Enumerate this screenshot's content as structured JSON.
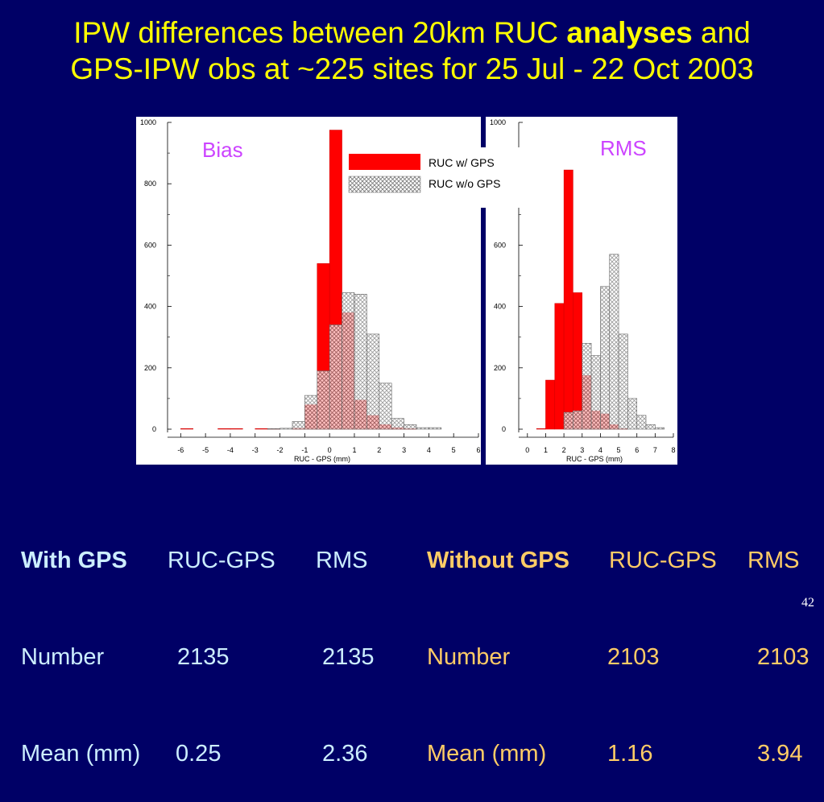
{
  "slide": {
    "title_line1_pre": "IPW differences between 20km RUC ",
    "title_line1_bold": "analyses",
    "title_line1_post": " and",
    "title_line2": "GPS-IPW obs at ~225 sites for 25 Jul - 22 Oct 2003",
    "page_number": "42"
  },
  "legend": {
    "with_gps": "RUC w/ GPS",
    "without_gps": "RUC w/o GPS"
  },
  "colors": {
    "background": "#000066",
    "with_gps": "#ff0000",
    "without_gps_hatch": "#999999",
    "title": "#ffff00",
    "panel_label": "#cc44ff"
  },
  "chart_data": [
    {
      "type": "bar",
      "panel_label": "Bias",
      "xlabel": "RUC - GPS (mm)",
      "xlim": [
        -6.4,
        6
      ],
      "ylim": [
        0,
        1000
      ],
      "yticks": [
        "0",
        "200",
        "400",
        "600",
        "800",
        "1000"
      ],
      "xticks": [
        "-6",
        "-5",
        "-4",
        "-3",
        "-2",
        "-1",
        "0",
        "1",
        "2",
        "3",
        "4",
        "5",
        "6"
      ],
      "bin_width": 0.5,
      "series": [
        {
          "name": "RUC w/ GPS",
          "bins": [
            -6.0,
            -4.5,
            -4.0,
            -3.0,
            -2.5,
            -1.5,
            -1.0,
            -0.5,
            0.0,
            0.5,
            1.0,
            1.5,
            2.0,
            2.5,
            3.0
          ],
          "values": [
            2,
            2,
            2,
            2,
            2,
            3,
            80,
            540,
            975,
            380,
            95,
            45,
            15,
            5,
            2
          ]
        },
        {
          "name": "RUC w/o GPS",
          "bins": [
            -2.5,
            -2.0,
            -1.5,
            -1.0,
            -0.5,
            0.0,
            0.5,
            1.0,
            1.5,
            2.0,
            2.5,
            3.0,
            3.5,
            4.0
          ],
          "values": [
            2,
            3,
            25,
            110,
            190,
            340,
            445,
            440,
            310,
            150,
            35,
            15,
            5,
            5
          ]
        }
      ]
    },
    {
      "type": "bar",
      "panel_label": "RMS",
      "xlabel": "RUC - GPS (mm)",
      "xlim": [
        -0.3,
        8
      ],
      "ylim": [
        0,
        1000
      ],
      "yticks": [
        "0",
        "200",
        "400",
        "600",
        "1000"
      ],
      "xticks": [
        "0",
        "1",
        "2",
        "3",
        "4",
        "5",
        "6",
        "7",
        "8"
      ],
      "bin_width": 0.5,
      "series": [
        {
          "name": "RUC w/ GPS",
          "bins": [
            0.5,
            1.0,
            1.5,
            2.0,
            2.5,
            3.0,
            3.5,
            4.0,
            4.5,
            5.0
          ],
          "values": [
            2,
            160,
            410,
            845,
            445,
            175,
            60,
            50,
            15,
            2
          ]
        },
        {
          "name": "RUC w/o GPS",
          "bins": [
            2.0,
            2.5,
            3.0,
            3.5,
            4.0,
            4.5,
            5.0,
            5.5,
            6.0,
            6.5,
            7.0
          ],
          "values": [
            55,
            60,
            280,
            240,
            465,
            570,
            310,
            100,
            45,
            15,
            5
          ]
        }
      ]
    }
  ],
  "stats": {
    "with": {
      "head": "With GPS",
      "col1": "RUC-GPS",
      "col2": "RMS",
      "row1_label": "Number",
      "row1_v1": "2135",
      "row1_v2": "2135",
      "row2_label": "Mean (mm)",
      "row2_v1": "0.25",
      "row2_v2": "2.36"
    },
    "without": {
      "head": "Without GPS",
      "col1": "RUC-GPS",
      "col2": "RMS",
      "row1_label": "Number",
      "row1_v1": "2103",
      "row1_v2": "2103",
      "row2_label": "Mean (mm)",
      "row2_v1": "1.16",
      "row2_v2": "3.94"
    }
  }
}
